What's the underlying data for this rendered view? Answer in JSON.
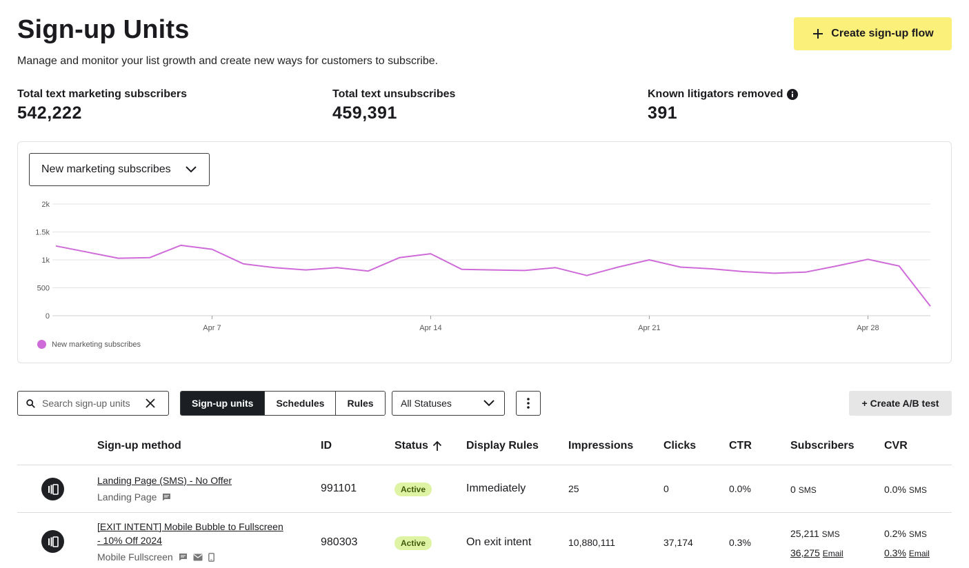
{
  "header": {
    "title": "Sign-up Units",
    "subtitle": "Manage and monitor your list growth and create new ways for customers to subscribe.",
    "create_button": "Create sign-up flow"
  },
  "stats": [
    {
      "label": "Total text marketing subscribers",
      "value": "542,222"
    },
    {
      "label": "Total text unsubscribes",
      "value": "459,391"
    },
    {
      "label": "Known litigators removed",
      "value": "391"
    }
  ],
  "chart": {
    "metric_select": "New marketing subscribes",
    "legend": "New marketing subscribes",
    "line_color": "#cf6ad9"
  },
  "chart_data": {
    "type": "line",
    "title": "",
    "xlabel": "",
    "ylabel": "",
    "ylim": [
      0,
      2000
    ],
    "y_ticks": [
      "0",
      "500",
      "1k",
      "1.5k",
      "2k"
    ],
    "x_ticks": [
      {
        "label": "Apr 7",
        "day": 7
      },
      {
        "label": "Apr 14",
        "day": 14
      },
      {
        "label": "Apr 21",
        "day": 21
      },
      {
        "label": "Apr 28",
        "day": 28
      }
    ],
    "series": [
      {
        "name": "New marketing subscribes",
        "x": [
          2,
          3,
          4,
          5,
          6,
          7,
          8,
          9,
          10,
          11,
          12,
          13,
          14,
          15,
          16,
          17,
          18,
          19,
          20,
          21,
          22,
          23,
          24,
          25,
          26,
          27,
          28,
          29,
          30
        ],
        "values": [
          1250,
          1140,
          1030,
          1040,
          1260,
          1190,
          930,
          860,
          820,
          860,
          800,
          1040,
          1110,
          830,
          820,
          810,
          860,
          720,
          870,
          1000,
          870,
          840,
          790,
          760,
          780,
          890,
          1010,
          890,
          170
        ]
      }
    ]
  },
  "toolbar": {
    "search_placeholder": "Search sign-up units",
    "tabs": [
      "Sign-up units",
      "Schedules",
      "Rules"
    ],
    "status_filter": "All Statuses",
    "ab_button": "+ Create A/B test"
  },
  "table": {
    "columns": [
      "Sign-up method",
      "ID",
      "Status",
      "Display Rules",
      "Impressions",
      "Clicks",
      "CTR",
      "Subscribers",
      "CVR"
    ],
    "rows": [
      {
        "name": "Landing Page (SMS) - No Offer",
        "type": "Landing Page",
        "id": "991101",
        "status": "Active",
        "display_rule": "Immediately",
        "impressions": "25",
        "clicks": "0",
        "ctr": "0.0%",
        "subscribers_sms": "0",
        "sms_unit": "SMS",
        "cvr_sms": "0.0%"
      },
      {
        "name_line1": "[EXIT INTENT] Mobile Bubble to Fullscreen",
        "name_line2": "- 10% Off 2024",
        "type": "Mobile Fullscreen",
        "id": "980303",
        "status": "Active",
        "display_rule": "On exit intent",
        "impressions": "10,880,111",
        "clicks": "37,174",
        "ctr": "0.3%",
        "subscribers_sms": "25,211",
        "sms_unit": "SMS",
        "subscribers_email": "36,275",
        "email_unit": "Email",
        "cvr_sms": "0.2%",
        "cvr_email": "0.3%"
      }
    ]
  }
}
